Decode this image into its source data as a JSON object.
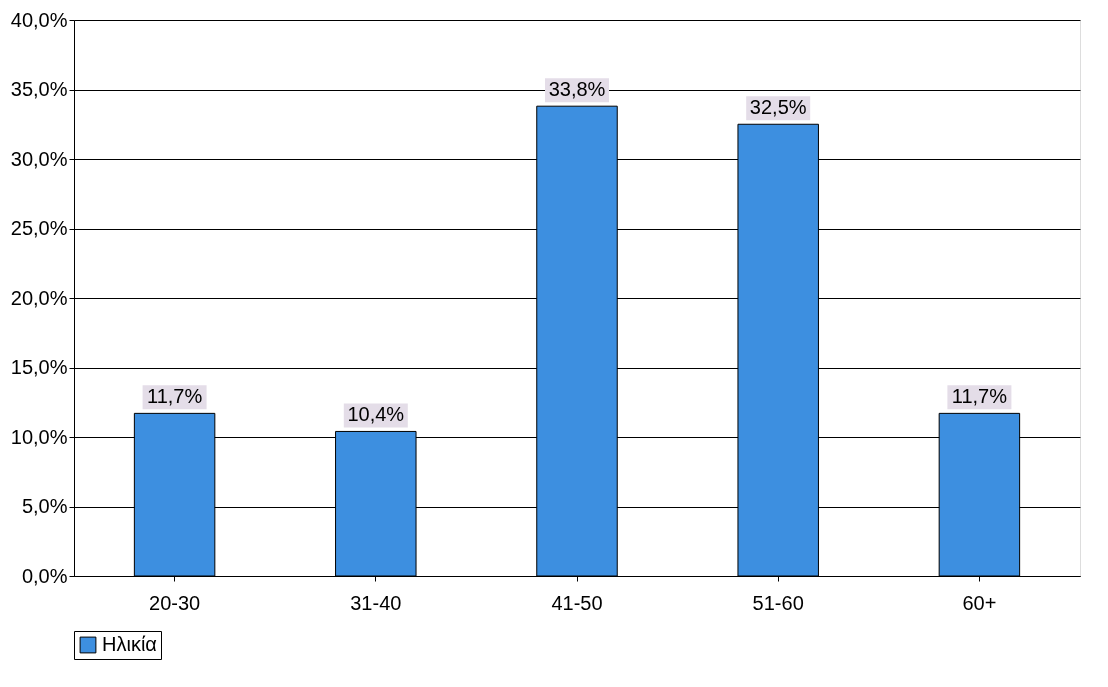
{
  "chart_data": {
    "type": "bar",
    "categories": [
      "20-30",
      "31-40",
      "41-50",
      "51-60",
      "60+"
    ],
    "series": [
      {
        "name": "Ηλικία",
        "color": "#3d8fe0",
        "values": [
          11.7,
          10.4,
          33.8,
          32.5,
          11.7
        ],
        "value_labels": [
          "11,7%",
          "10,4%",
          "33,8%",
          "32,5%",
          "11,7%"
        ]
      }
    ],
    "ylim": [
      0,
      40
    ],
    "yticks": [
      {
        "value": 0,
        "label": "0,0%"
      },
      {
        "value": 5,
        "label": "5,0%"
      },
      {
        "value": 10,
        "label": "10,0%"
      },
      {
        "value": 15,
        "label": "15,0%"
      },
      {
        "value": 20,
        "label": "20,0%"
      },
      {
        "value": 25,
        "label": "25,0%"
      },
      {
        "value": 30,
        "label": "30,0%"
      },
      {
        "value": 35,
        "label": "35,0%"
      },
      {
        "value": 40,
        "label": "40,0%"
      }
    ],
    "grid": "y",
    "legend": "bottom"
  }
}
